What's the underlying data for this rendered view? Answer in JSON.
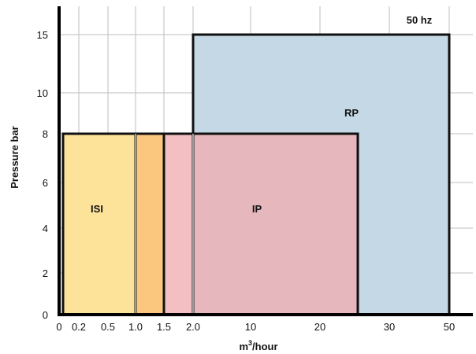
{
  "chart_data": {
    "type": "area",
    "xlabel": {
      "base": "m",
      "sup": "3",
      "rest": "/hour"
    },
    "ylabel": "Pressure bar",
    "annotation": "50 hz",
    "x_ticks": [
      "0",
      "0.2",
      "0.5",
      "1.0",
      "1.5",
      "2.0",
      "10",
      "20",
      "30",
      "50"
    ],
    "y_ticks": [
      "0",
      "2",
      "4",
      "6",
      "8",
      "10",
      "15"
    ],
    "xlim": [
      "0",
      "50"
    ],
    "ylim": [
      0,
      15
    ],
    "grid": true,
    "colors": {
      "ISI": "#fde39a",
      "ISI_overlap": "#fbc67e",
      "IP": "#f3bfc3",
      "IP_overlap": "#e6b7bc",
      "RP": "#c4d9e5",
      "border": "#111111",
      "grid": "#bdbdbd"
    },
    "regions": [
      {
        "name": "RP",
        "x_from": "2.0",
        "x_to": "50",
        "y_from": 0,
        "y_to": 15
      },
      {
        "name": "IP",
        "x_from": "1.0",
        "x_to": "25",
        "y_from": 0,
        "y_to": 8
      },
      {
        "name": "ISI",
        "x_from": "0.1",
        "x_to": "1.5",
        "y_from": 0,
        "y_to": 8
      }
    ]
  }
}
